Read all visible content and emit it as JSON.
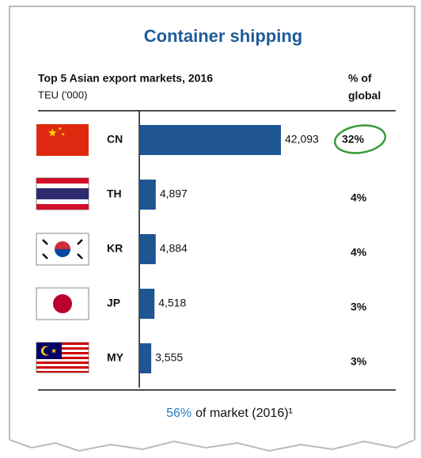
{
  "chart_data": {
    "type": "bar",
    "orientation": "horizontal",
    "title": "Container shipping",
    "subtitle": "Top 5 Asian export markets, 2016",
    "unit_label": "TEU ('000)",
    "share_header": [
      "% of",
      "global"
    ],
    "categories": [
      "CN",
      "TH",
      "KR",
      "JP",
      "MY"
    ],
    "values": [
      42093,
      4897,
      4884,
      4518,
      3555
    ],
    "value_labels": [
      "42,093",
      "4,897",
      "4,884",
      "4,518",
      "3,555"
    ],
    "shares": [
      32,
      4,
      4,
      3,
      3
    ],
    "share_labels": [
      "32%",
      "4%",
      "4%",
      "3%",
      "3%"
    ],
    "color": "#1f5593",
    "footer_highlight": "56%",
    "footer_text": "of market (2016)¹"
  }
}
